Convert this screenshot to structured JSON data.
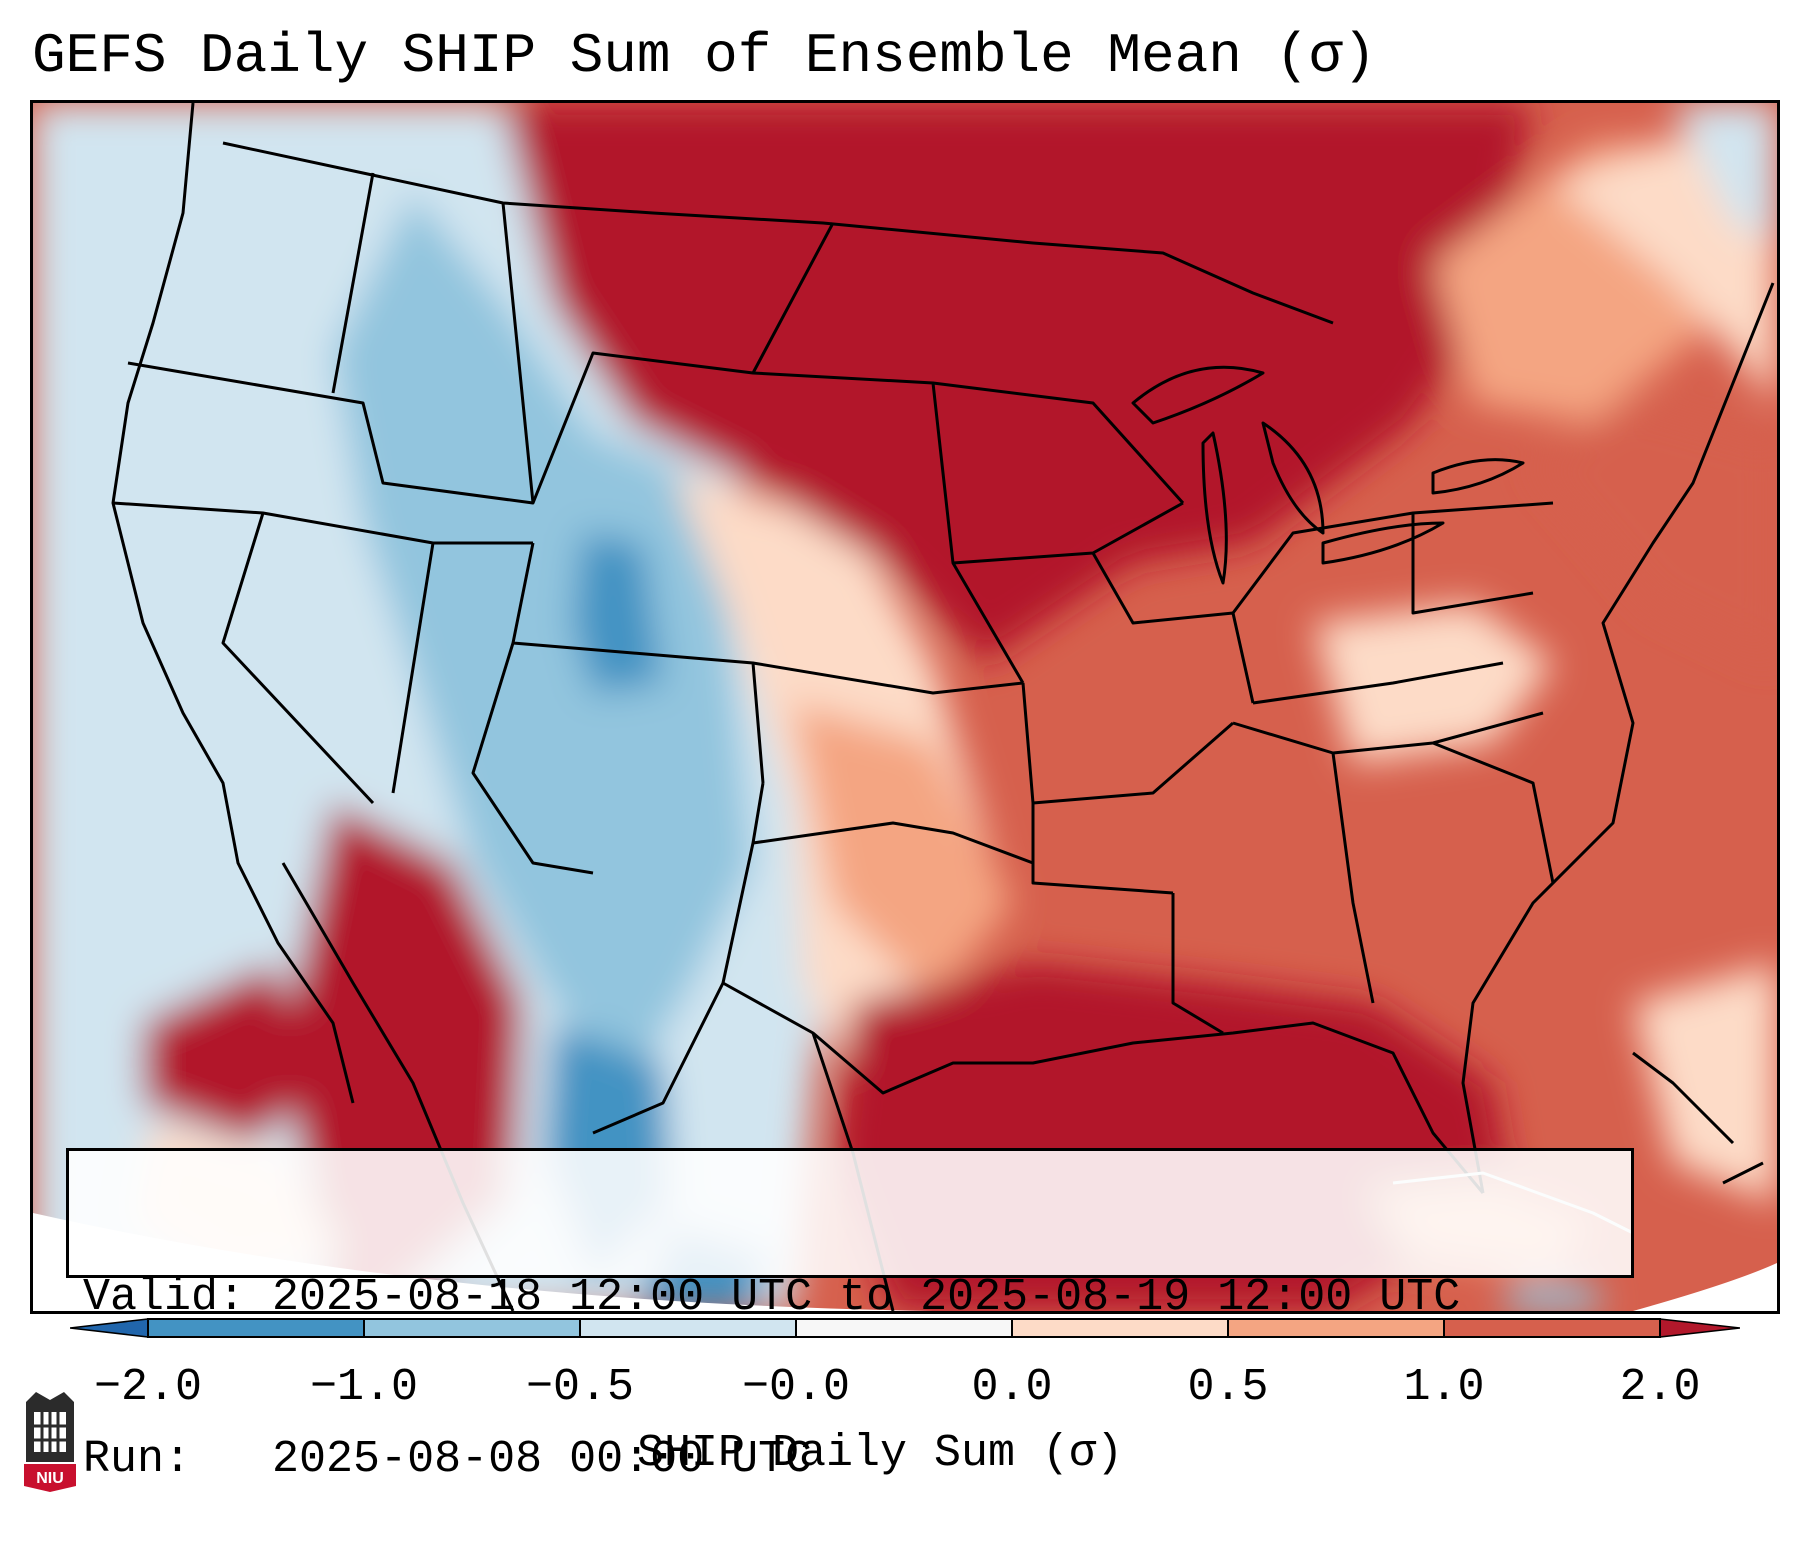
{
  "title": "GEFS Daily SHIP Sum of Ensemble Mean (σ)",
  "info": {
    "valid_label": "Valid:",
    "valid_value": "2025-08-18 12:00 UTC to 2025-08-19 12:00 UTC",
    "run_label": "Run:",
    "run_value": "2025-08-08 00:00 UTC"
  },
  "colorbar": {
    "label": "SHIP Daily Sum (σ)",
    "tick_labels": [
      "−2.0",
      "−1.0",
      "−0.5",
      "−0.0",
      "0.0",
      "0.5",
      "1.0",
      "2.0"
    ],
    "bins": [
      {
        "range": "< -2.0",
        "color": "#2166ac"
      },
      {
        "range": "-2.0 to -1.0",
        "color": "#4393c3"
      },
      {
        "range": "-1.0 to -0.5",
        "color": "#92c5de"
      },
      {
        "range": "-0.5 to -0.0",
        "color": "#d1e5f0"
      },
      {
        "range": "-0.0 to 0.0",
        "color": "#f7f7f7"
      },
      {
        "range": "0.0 to 0.5",
        "color": "#fddbc7"
      },
      {
        "range": "0.5 to 1.0",
        "color": "#f4a582"
      },
      {
        "range": "1.0 to 2.0",
        "color": "#d6604d"
      },
      {
        "range": "> 2.0",
        "color": "#b2182b"
      }
    ]
  },
  "logo": {
    "text": "NIU",
    "icon": "niu-logo-icon"
  }
}
